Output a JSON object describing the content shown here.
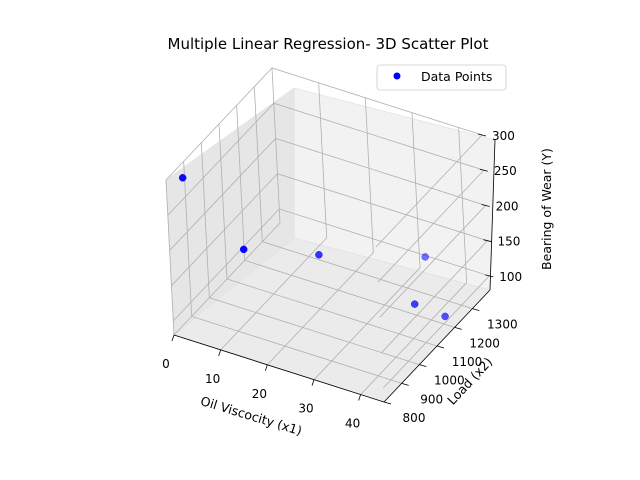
{
  "chart_data": {
    "type": "scatter",
    "title": "Multiple Linear Regression- 3D Scatter Plot",
    "xlabel": "Oil Viscocity (x1)",
    "ylabel": "Load (x2)",
    "zlabel": "Bearing of Wear (Y)",
    "xlim": [
      0,
      45
    ],
    "ylim": [
      800,
      1400
    ],
    "zlim": [
      80,
      300
    ],
    "x_ticks": [
      "0",
      "10",
      "20",
      "30",
      "40"
    ],
    "y_ticks": [
      "800",
      "900",
      "1000",
      "1100",
      "1200",
      "1300"
    ],
    "z_ticks": [
      "100",
      "150",
      "200",
      "250",
      "300"
    ],
    "grid": true,
    "legend_position": "upper right",
    "series": [
      {
        "name": "Data Points",
        "color": "#0000ff",
        "x": [
          1.6,
          15.5,
          22.0,
          43.0,
          33.0,
          40.0
        ],
        "y": [
          851,
          816,
          1058,
          1201,
          1357,
          1115
        ],
        "z": [
          293,
          230,
          172,
          91,
          113,
          125
        ]
      }
    ]
  }
}
